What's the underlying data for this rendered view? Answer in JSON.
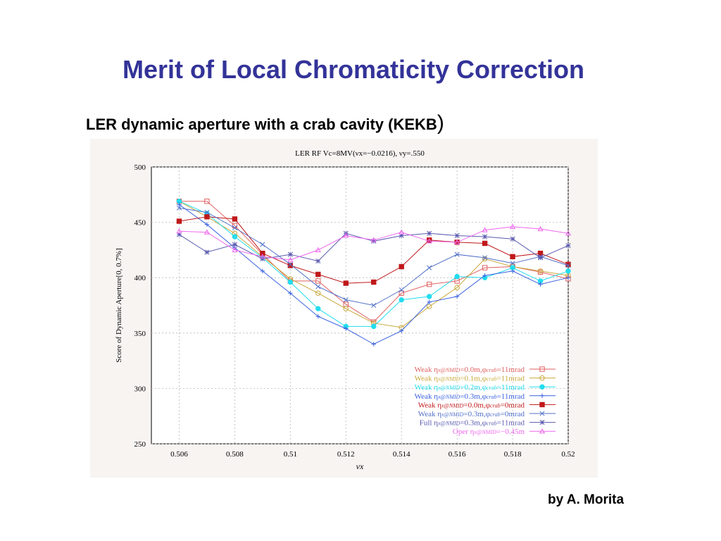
{
  "slide": {
    "title": "Merit of Local Chromaticity Correction",
    "subtitle": "LER dynamic aperture with a  crab cavity (KEKB",
    "subtitle_close": ")",
    "credit": "by A. Morita"
  },
  "chart_data": {
    "type": "line",
    "title": "LER RF Vc=8MV(νx=−0.0216), νy=.550",
    "xlabel": "νx",
    "ylabel": "Score of Dynamic Aperture[0, 0.7%]",
    "xlim": [
      0.505,
      0.52
    ],
    "ylim": [
      250,
      500
    ],
    "xticks": [
      "0.506",
      "0.508",
      "0.51",
      "0.512",
      "0.514",
      "0.516",
      "0.518",
      "0.52"
    ],
    "yticks": [
      "500",
      "450",
      "400",
      "350",
      "300",
      "250"
    ],
    "grid": true,
    "legend_position": "bottom-right",
    "x": [
      0.506,
      0.507,
      0.508,
      0.509,
      0.51,
      0.511,
      0.512,
      0.513,
      0.514,
      0.515,
      0.516,
      0.517,
      0.518,
      0.519,
      0.52
    ],
    "series": [
      {
        "name": "Weak ηx@NMID=0.0m,φcrab=11mrad",
        "legend_text": "Weak η",
        "legend_sub": "x@NMID",
        "legend_rest": "=0.0m,φ",
        "legend_sub2": "crab",
        "legend_tail": "=11mrad",
        "color": "#e06060",
        "marker": "square-open",
        "values": [
          469,
          469,
          447,
          421,
          397,
          397,
          376,
          360,
          386,
          394,
          397,
          409,
          410,
          405,
          399
        ]
      },
      {
        "name": "Weak ηx@NMID=0.1m,φcrab=11mrad",
        "legend_text": "Weak η",
        "legend_sub": "x@NMID",
        "legend_rest": "=0.1m,φ",
        "legend_sub2": "crab",
        "legend_tail": "=11mrad",
        "color": "#c8a83a",
        "marker": "circle-open",
        "values": [
          469,
          455,
          440,
          419,
          399,
          386,
          372,
          359,
          355,
          374,
          391,
          417,
          410,
          406,
          402
        ]
      },
      {
        "name": "Weak ηx@NMID=0.2m,φcrab=11mrad",
        "legend_text": "Weak η",
        "legend_sub": "x@NMID",
        "legend_rest": "=0.2m,φ",
        "legend_sub2": "crab",
        "legend_tail": "=11mrad",
        "color": "#22ddee",
        "marker": "circle-filled",
        "values": [
          469,
          458,
          437,
          418,
          396,
          372,
          356,
          356,
          380,
          383,
          401,
          400,
          409,
          397,
          406
        ]
      },
      {
        "name": "Weak ηx@NMID=0.3m,φcrab=11mrad",
        "legend_text": "Weak η",
        "legend_sub": "x@NMID",
        "legend_rest": "=0.3m,φ",
        "legend_sub2": "crab",
        "legend_tail": "=11mrad",
        "color": "#3a62e0",
        "marker": "plus",
        "values": [
          466,
          448,
          427,
          406,
          386,
          365,
          354,
          340,
          352,
          378,
          383,
          402,
          406,
          394,
          400
        ]
      },
      {
        "name": "Weak ηx@NMID=0.0m,φcrab=0mrad",
        "legend_text": "Weak η",
        "legend_sub": "x@NMID",
        "legend_rest": "=0.0m,φ",
        "legend_sub2": "crab",
        "legend_tail": "=0mrad",
        "color": "#c0181a",
        "marker": "square-filled",
        "values": [
          451,
          455,
          453,
          422,
          411,
          403,
          395,
          396,
          410,
          434,
          432,
          431,
          419,
          422,
          412
        ]
      },
      {
        "name": "Weak ηx@NMID=0.3m,φcrab=0mrad",
        "legend_text": "Weak η",
        "legend_sub": "x@NMID",
        "legend_rest": "=0.3m,φ",
        "legend_sub2": "crab",
        "legend_tail": "=0mrad",
        "color": "#5070c8",
        "marker": "x",
        "values": [
          463,
          459,
          445,
          430,
          412,
          392,
          380,
          375,
          389,
          409,
          421,
          418,
          413,
          419,
          411
        ]
      },
      {
        "name": "Full ηx@NMID=0.3m,φcrab=11mrad",
        "legend_text": "Full η",
        "legend_sub": "x@NMID",
        "legend_rest": "=0.3m,φ",
        "legend_sub2": "crab",
        "legend_tail": "=11mrad",
        "color": "#5a5ab0",
        "marker": "star",
        "values": [
          439,
          423,
          430,
          417,
          421,
          415,
          440,
          433,
          438,
          440,
          438,
          437,
          435,
          418,
          429
        ]
      },
      {
        "name": "Oper ηx@NMID=−0.45m",
        "legend_text": "Oper η",
        "legend_sub": "x@NMID",
        "legend_rest": "=−0.45m",
        "legend_sub2": "",
        "legend_tail": "",
        "color": "#ee66ee",
        "marker": "triangle",
        "values": [
          442,
          441,
          425,
          419,
          416,
          425,
          438,
          434,
          441,
          433,
          432,
          443,
          446,
          444,
          440
        ]
      }
    ]
  }
}
